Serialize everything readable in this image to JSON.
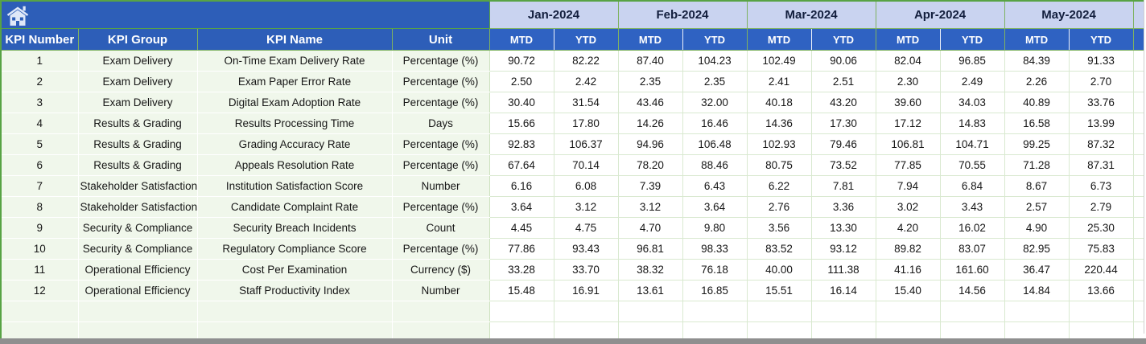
{
  "colors": {
    "banner_blue": "#2d5eb8",
    "subheader_blue": "#2f62c2",
    "month_band_blue": "#c9d3f0",
    "month_text": "#121e3d",
    "structural_green": "#58a345",
    "grid_light_green": "#d9e9d0",
    "left_cell_green": "#f0f7eb",
    "scrollbar_gray": "#8f8f8f"
  },
  "header": {
    "home_icon": "home-icon",
    "months": [
      "Jan-2024",
      "Feb-2024",
      "Mar-2024",
      "Apr-2024",
      "May-2024"
    ],
    "period_labels": [
      "MTD",
      "YTD"
    ],
    "left_columns": [
      "KPI Number",
      "KPI Group",
      "KPI Name",
      "Unit"
    ]
  },
  "rows": [
    {
      "number": "1",
      "group": "Exam Delivery",
      "name": "On-Time Exam Delivery Rate",
      "unit": "Percentage (%)",
      "values": [
        "90.72",
        "82.22",
        "87.40",
        "104.23",
        "102.49",
        "90.06",
        "82.04",
        "96.85",
        "84.39",
        "91.33"
      ]
    },
    {
      "number": "2",
      "group": "Exam Delivery",
      "name": "Exam Paper Error Rate",
      "unit": "Percentage (%)",
      "values": [
        "2.50",
        "2.42",
        "2.35",
        "2.35",
        "2.41",
        "2.51",
        "2.30",
        "2.49",
        "2.26",
        "2.70"
      ]
    },
    {
      "number": "3",
      "group": "Exam Delivery",
      "name": "Digital Exam Adoption Rate",
      "unit": "Percentage (%)",
      "values": [
        "30.40",
        "31.54",
        "43.46",
        "32.00",
        "40.18",
        "43.20",
        "39.60",
        "34.03",
        "40.89",
        "33.76"
      ]
    },
    {
      "number": "4",
      "group": "Results & Grading",
      "name": "Results Processing Time",
      "unit": "Days",
      "values": [
        "15.66",
        "17.80",
        "14.26",
        "16.46",
        "14.36",
        "17.30",
        "17.12",
        "14.83",
        "16.58",
        "13.99"
      ]
    },
    {
      "number": "5",
      "group": "Results & Grading",
      "name": "Grading Accuracy Rate",
      "unit": "Percentage (%)",
      "values": [
        "92.83",
        "106.37",
        "94.96",
        "106.48",
        "102.93",
        "79.46",
        "106.81",
        "104.71",
        "99.25",
        "87.32"
      ]
    },
    {
      "number": "6",
      "group": "Results & Grading",
      "name": "Appeals Resolution Rate",
      "unit": "Percentage (%)",
      "values": [
        "67.64",
        "70.14",
        "78.20",
        "88.46",
        "80.75",
        "73.52",
        "77.85",
        "70.55",
        "71.28",
        "87.31"
      ]
    },
    {
      "number": "7",
      "group": "Stakeholder Satisfaction",
      "name": "Institution Satisfaction Score",
      "unit": "Number",
      "values": [
        "6.16",
        "6.08",
        "7.39",
        "6.43",
        "6.22",
        "7.81",
        "7.94",
        "6.84",
        "8.67",
        "6.73"
      ]
    },
    {
      "number": "8",
      "group": "Stakeholder Satisfaction",
      "name": "Candidate Complaint Rate",
      "unit": "Percentage (%)",
      "values": [
        "3.64",
        "3.12",
        "3.12",
        "3.64",
        "2.76",
        "3.36",
        "3.02",
        "3.43",
        "2.57",
        "2.79"
      ]
    },
    {
      "number": "9",
      "group": "Security & Compliance",
      "name": "Security Breach Incidents",
      "unit": "Count",
      "values": [
        "4.45",
        "4.75",
        "4.70",
        "9.80",
        "3.56",
        "13.30",
        "4.20",
        "16.02",
        "4.90",
        "25.30"
      ]
    },
    {
      "number": "10",
      "group": "Security & Compliance",
      "name": "Regulatory Compliance Score",
      "unit": "Percentage (%)",
      "values": [
        "77.86",
        "93.43",
        "96.81",
        "98.33",
        "83.52",
        "93.12",
        "89.82",
        "83.07",
        "82.95",
        "75.83"
      ]
    },
    {
      "number": "11",
      "group": "Operational Efficiency",
      "name": "Cost Per Examination",
      "unit": "Currency ($)",
      "values": [
        "33.28",
        "33.70",
        "38.32",
        "76.18",
        "40.00",
        "111.38",
        "41.16",
        "161.60",
        "36.47",
        "220.44"
      ]
    },
    {
      "number": "12",
      "group": "Operational Efficiency",
      "name": "Staff Productivity Index",
      "unit": "Number",
      "values": [
        "15.48",
        "16.91",
        "13.61",
        "16.85",
        "15.51",
        "16.14",
        "15.40",
        "14.56",
        "14.84",
        "13.66"
      ]
    }
  ],
  "empty_row_count": 2
}
